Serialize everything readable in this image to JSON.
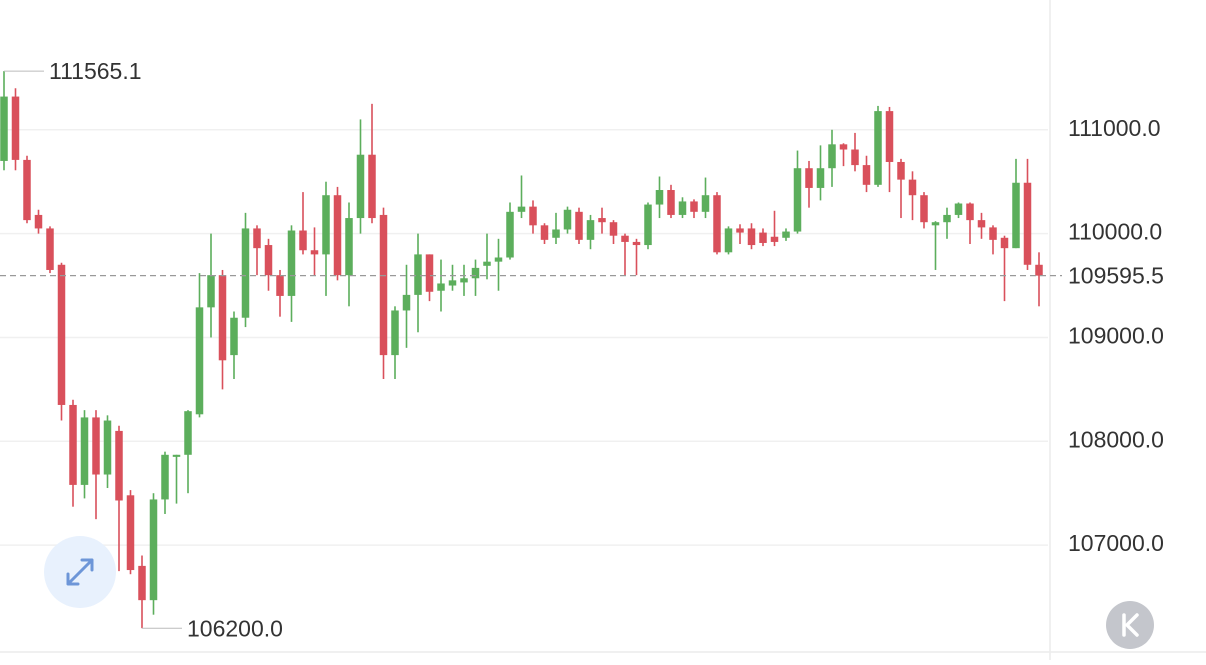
{
  "chart_data": {
    "type": "candlestick",
    "up_color": "#5cae5c",
    "down_color": "#d9505b",
    "ylim": [
      105990,
      112250
    ],
    "yticks": [
      {
        "value": 107000,
        "label": "107000.0"
      },
      {
        "value": 108000,
        "label": "108000.0"
      },
      {
        "value": 109000,
        "label": "109000.0"
      },
      {
        "value": 110000,
        "label": "110000.0"
      },
      {
        "value": 111000,
        "label": "111000.0"
      }
    ],
    "grid": true,
    "current_price": 109595.5,
    "max_label": 111565.1,
    "min_label": {
      "value": 106200,
      "label": "106200.0"
    },
    "open": [
      110700,
      111320,
      110710,
      110180,
      110050,
      109700,
      108350,
      107580,
      108230,
      107680,
      108100,
      107480,
      106800,
      106470,
      107440,
      107850,
      107870,
      108260,
      109290,
      109600,
      108830,
      109190,
      110050,
      109890,
      109600,
      109400,
      110030,
      109840,
      109800,
      110370,
      109600,
      110150,
      110760,
      110180,
      108830,
      109260,
      109410,
      109800,
      109450,
      109500,
      109530,
      109570,
      109690,
      109730,
      109770,
      110210,
      110260,
      110080,
      109960,
      110040,
      110210,
      109940,
      110150,
      110110,
      109980,
      109920,
      109890,
      110280,
      110420,
      110180,
      110310,
      110210,
      110370,
      109820,
      110050,
      110050,
      110010,
      109970,
      109960,
      110020,
      110630,
      110440,
      110630,
      110860,
      110810,
      110660,
      110470,
      111180,
      110690,
      110520,
      110370,
      110080,
      110110,
      110180,
      110290,
      110130,
      110060,
      109960,
      109860,
      110490,
      109700
    ],
    "high": [
      111565.1,
      111400,
      110750,
      110230,
      110070,
      109720,
      108400,
      108300,
      108300,
      108250,
      108150,
      107530,
      106900,
      107500,
      107900,
      107870,
      108300,
      109620,
      110000,
      109650,
      109250,
      110200,
      110080,
      109950,
      109650,
      110080,
      110400,
      110060,
      110500,
      110450,
      110300,
      111100,
      111250,
      110250,
      109300,
      109700,
      110000,
      109800,
      109750,
      109700,
      109700,
      109750,
      110000,
      109950,
      110300,
      110560,
      110320,
      110100,
      110200,
      110260,
      110250,
      110180,
      110250,
      110130,
      110000,
      109950,
      110300,
      110550,
      110470,
      110350,
      110330,
      110540,
      110400,
      110070,
      110090,
      110100,
      110050,
      110220,
      110050,
      110800,
      110700,
      110850,
      111000,
      110870,
      110970,
      110750,
      111230,
      111220,
      110720,
      110600,
      110400,
      110120,
      110250,
      110300,
      110300,
      110200,
      110080,
      109980,
      110720,
      110720,
      109820
    ],
    "low": [
      110610,
      110610,
      110100,
      110000,
      109620,
      108200,
      107370,
      107450,
      107250,
      107550,
      106750,
      106720,
      106200,
      106330,
      107300,
      107400,
      107500,
      108230,
      109000,
      108500,
      108600,
      109100,
      109600,
      109450,
      109200,
      109150,
      109800,
      109600,
      109400,
      109550,
      109300,
      110000,
      110100,
      108600,
      108600,
      108900,
      109050,
      109350,
      109250,
      109450,
      109400,
      109400,
      109560,
      109450,
      109750,
      110150,
      110000,
      109900,
      109900,
      110000,
      109900,
      109850,
      110000,
      109900,
      109600,
      109600,
      109850,
      110150,
      110150,
      110150,
      110150,
      110150,
      109800,
      109800,
      109900,
      109850,
      109880,
      109880,
      109930,
      110000,
      110250,
      110320,
      110450,
      110650,
      110600,
      110400,
      110450,
      110400,
      110150,
      110130,
      110050,
      109650,
      109950,
      110150,
      109900,
      109950,
      109800,
      109350,
      109860,
      109650,
      109300
    ],
    "close": [
      111320,
      110710,
      110130,
      110050,
      109650,
      108350,
      107580,
      108230,
      107680,
      108200,
      107430,
      106760,
      106470,
      107440,
      107870,
      107870,
      108290,
      109290,
      109600,
      108780,
      109190,
      110050,
      109860,
      109600,
      109400,
      110030,
      109840,
      109800,
      110370,
      109600,
      110150,
      110760,
      110150,
      108830,
      109260,
      109410,
      109800,
      109440,
      109520,
      109550,
      109570,
      109670,
      109730,
      109770,
      110210,
      110260,
      110080,
      109940,
      110040,
      110230,
      109940,
      110130,
      110110,
      109980,
      109920,
      109890,
      110280,
      110420,
      110180,
      110310,
      110210,
      110370,
      109820,
      110050,
      110010,
      109890,
      109910,
      109920,
      110020,
      110630,
      110440,
      110630,
      110860,
      110810,
      110660,
      110470,
      111180,
      110690,
      110520,
      110370,
      110110,
      110110,
      110180,
      110290,
      110130,
      110060,
      109940,
      109860,
      110490,
      109700,
      109595.5
    ]
  }
}
